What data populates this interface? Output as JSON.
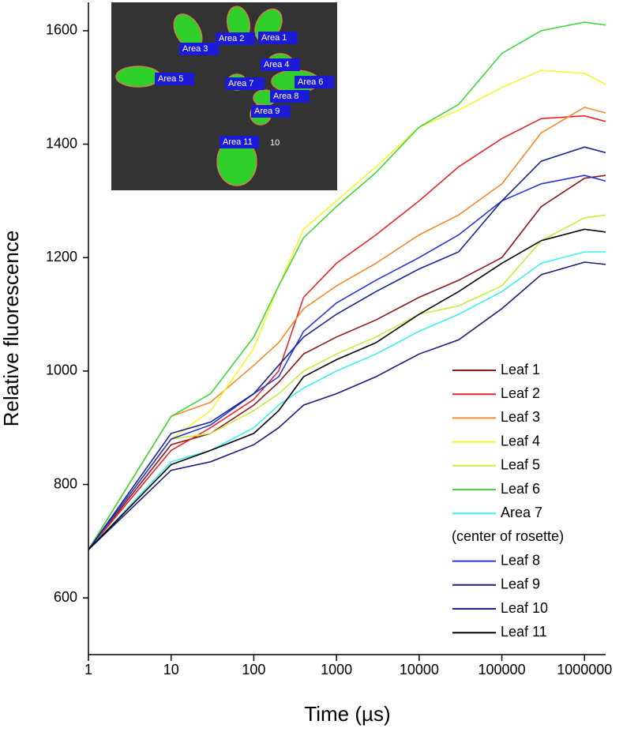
{
  "chart_data": {
    "type": "line",
    "x_label": "Time (µs)",
    "y_label": "Relative fluorescence",
    "x_scale": "log",
    "x": [
      1,
      10,
      30,
      100,
      200,
      400,
      1000,
      3000,
      10000,
      30000,
      100000,
      300000,
      1000000,
      1800000
    ],
    "xlim": [
      1,
      1800000
    ],
    "xticks": [
      1,
      10,
      100,
      1000,
      10000,
      100000,
      1000000
    ],
    "ylim": [
      500,
      1650
    ],
    "yticks": [
      600,
      800,
      1000,
      1200,
      1400,
      1600
    ],
    "series": [
      {
        "name": "Leaf 1",
        "color": "#8b1a1a",
        "values": [
          685,
          870,
          890,
          940,
          980,
          1030,
          1060,
          1090,
          1130,
          1160,
          1200,
          1290,
          1340,
          1345
        ]
      },
      {
        "name": "Leaf 2",
        "color": "#e8262a",
        "values": [
          685,
          860,
          900,
          950,
          1000,
          1130,
          1190,
          1240,
          1300,
          1360,
          1410,
          1445,
          1450,
          1440
        ]
      },
      {
        "name": "Leaf 3",
        "color": "#f4892d",
        "values": [
          685,
          920,
          945,
          1010,
          1050,
          1110,
          1150,
          1190,
          1240,
          1275,
          1330,
          1420,
          1465,
          1455
        ]
      },
      {
        "name": "Leaf 4",
        "color": "#f5f530",
        "values": [
          685,
          880,
          930,
          1040,
          1150,
          1250,
          1300,
          1360,
          1430,
          1460,
          1500,
          1530,
          1525,
          1505
        ]
      },
      {
        "name": "Leaf 5",
        "color": "#c8ec3a",
        "values": [
          685,
          880,
          890,
          930,
          960,
          1000,
          1030,
          1060,
          1100,
          1115,
          1150,
          1230,
          1270,
          1275
        ]
      },
      {
        "name": "Leaf 6",
        "color": "#3ed83a",
        "values": [
          685,
          920,
          960,
          1060,
          1150,
          1235,
          1290,
          1350,
          1430,
          1470,
          1560,
          1600,
          1615,
          1610
        ]
      },
      {
        "name": "Area 7",
        "note": "(center of rosette)",
        "color": "#3ef0f0",
        "values": [
          685,
          840,
          860,
          900,
          940,
          970,
          1000,
          1030,
          1070,
          1100,
          1140,
          1190,
          1210,
          1210
        ]
      },
      {
        "name": "Leaf 8",
        "color": "#2a35d8",
        "values": [
          685,
          880,
          905,
          960,
          990,
          1070,
          1120,
          1160,
          1200,
          1240,
          1300,
          1330,
          1345,
          1335
        ]
      },
      {
        "name": "Leaf 9",
        "color": "#1c1c7a",
        "values": [
          685,
          825,
          840,
          870,
          900,
          940,
          960,
          990,
          1030,
          1055,
          1110,
          1170,
          1192,
          1188
        ]
      },
      {
        "name": "Leaf 10",
        "color": "#15268f",
        "values": [
          685,
          890,
          910,
          960,
          1010,
          1060,
          1100,
          1140,
          1180,
          1210,
          1300,
          1370,
          1395,
          1385
        ]
      },
      {
        "name": "Leaf 11",
        "color": "#000000",
        "values": [
          685,
          835,
          860,
          890,
          930,
          990,
          1020,
          1050,
          1100,
          1140,
          1190,
          1230,
          1250,
          1245
        ]
      }
    ],
    "inset": {
      "labels": [
        "Area 1",
        "Area 2",
        "Area 3",
        "Area 4",
        "Area 5",
        "Area 6",
        "Area 7",
        "Area 8",
        "Area 9",
        "Area 11",
        "10"
      ]
    }
  }
}
